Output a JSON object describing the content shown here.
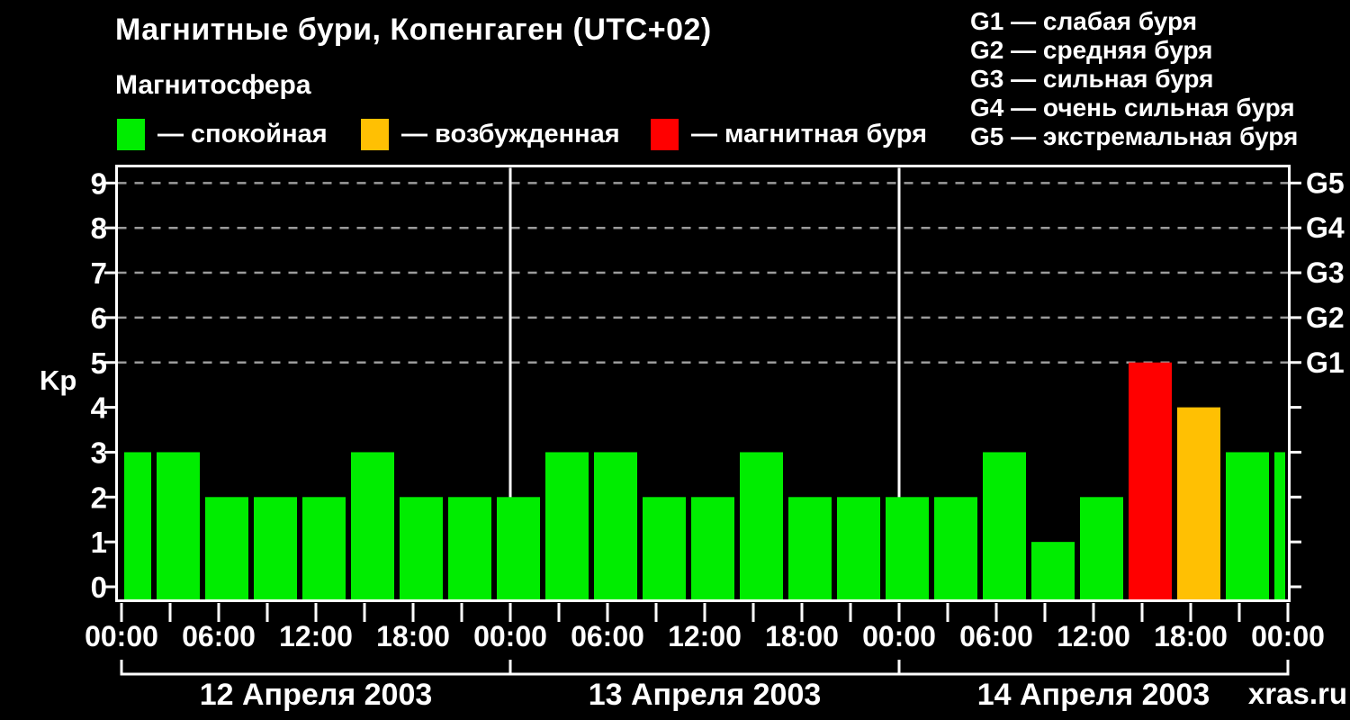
{
  "header": {
    "title": "Магнитные бури, Копенгаген (UTC+02)",
    "subtitle": "Магнитосфера"
  },
  "legend": {
    "items": [
      {
        "key": "quiet",
        "label": "— спокойная",
        "color": "#00ed00"
      },
      {
        "key": "excited",
        "label": "— возбужденная",
        "color": "#ffc003"
      },
      {
        "key": "storm",
        "label": "— магнитная буря",
        "color": "#ff0000"
      }
    ]
  },
  "g_legend": {
    "lines": [
      "G1 — слабая буря",
      "G2 — средняя буря",
      "G3 — сильная буря",
      "G4 — очень сильная буря",
      "G5 — экстремальная буря"
    ]
  },
  "watermark": "xras.ru",
  "chart_data": {
    "type": "bar",
    "title": "Магнитные бури, Копенгаген (UTC+02)",
    "ylabel": "Kp",
    "ylim": [
      0,
      9.4
    ],
    "yticks": [
      0,
      1,
      2,
      3,
      4,
      5,
      6,
      7,
      8,
      9
    ],
    "right_axis": [
      {
        "kp": 5,
        "label": "G1"
      },
      {
        "kp": 6,
        "label": "G2"
      },
      {
        "kp": 7,
        "label": "G3"
      },
      {
        "kp": 8,
        "label": "G4"
      },
      {
        "kp": 9,
        "label": "G5"
      }
    ],
    "dashed_grid_kp": [
      5,
      6,
      7,
      8,
      9
    ],
    "hours_span": 72,
    "minor_tick_hours": 3,
    "day_boundary_hours": [
      24,
      48
    ],
    "time_ticks": [
      {
        "hour": 0,
        "label": "00:00"
      },
      {
        "hour": 6,
        "label": "06:00"
      },
      {
        "hour": 12,
        "label": "12:00"
      },
      {
        "hour": 18,
        "label": "18:00"
      },
      {
        "hour": 24,
        "label": "00:00"
      },
      {
        "hour": 30,
        "label": "06:00"
      },
      {
        "hour": 36,
        "label": "12:00"
      },
      {
        "hour": 42,
        "label": "18:00"
      },
      {
        "hour": 48,
        "label": "00:00"
      },
      {
        "hour": 54,
        "label": "06:00"
      },
      {
        "hour": 60,
        "label": "12:00"
      },
      {
        "hour": 66,
        "label": "18:00"
      },
      {
        "hour": 72,
        "label": "00:00"
      }
    ],
    "days": [
      {
        "label": "12 Апреля 2003",
        "start_hour": 0,
        "end_hour": 24
      },
      {
        "label": "13 Апреля 2003",
        "start_hour": 24,
        "end_hour": 48
      },
      {
        "label": "14 Апреля 2003",
        "start_hour": 48,
        "end_hour": 72
      }
    ],
    "bars": [
      {
        "start_hour": 0,
        "end_hour": 2,
        "kp": 3,
        "state": "quiet"
      },
      {
        "start_hour": 2,
        "end_hour": 5,
        "kp": 3,
        "state": "quiet"
      },
      {
        "start_hour": 5,
        "end_hour": 8,
        "kp": 2,
        "state": "quiet"
      },
      {
        "start_hour": 8,
        "end_hour": 11,
        "kp": 2,
        "state": "quiet"
      },
      {
        "start_hour": 11,
        "end_hour": 14,
        "kp": 2,
        "state": "quiet"
      },
      {
        "start_hour": 14,
        "end_hour": 17,
        "kp": 3,
        "state": "quiet"
      },
      {
        "start_hour": 17,
        "end_hour": 20,
        "kp": 2,
        "state": "quiet"
      },
      {
        "start_hour": 20,
        "end_hour": 23,
        "kp": 2,
        "state": "quiet"
      },
      {
        "start_hour": 23,
        "end_hour": 26,
        "kp": 2,
        "state": "quiet"
      },
      {
        "start_hour": 26,
        "end_hour": 29,
        "kp": 3,
        "state": "quiet"
      },
      {
        "start_hour": 29,
        "end_hour": 32,
        "kp": 3,
        "state": "quiet"
      },
      {
        "start_hour": 32,
        "end_hour": 35,
        "kp": 2,
        "state": "quiet"
      },
      {
        "start_hour": 35,
        "end_hour": 38,
        "kp": 2,
        "state": "quiet"
      },
      {
        "start_hour": 38,
        "end_hour": 41,
        "kp": 3,
        "state": "quiet"
      },
      {
        "start_hour": 41,
        "end_hour": 44,
        "kp": 2,
        "state": "quiet"
      },
      {
        "start_hour": 44,
        "end_hour": 47,
        "kp": 2,
        "state": "quiet"
      },
      {
        "start_hour": 47,
        "end_hour": 50,
        "kp": 2,
        "state": "quiet"
      },
      {
        "start_hour": 50,
        "end_hour": 53,
        "kp": 2,
        "state": "quiet"
      },
      {
        "start_hour": 53,
        "end_hour": 56,
        "kp": 3,
        "state": "quiet"
      },
      {
        "start_hour": 56,
        "end_hour": 59,
        "kp": 1,
        "state": "quiet"
      },
      {
        "start_hour": 59,
        "end_hour": 62,
        "kp": 2,
        "state": "quiet"
      },
      {
        "start_hour": 62,
        "end_hour": 65,
        "kp": 5,
        "state": "storm"
      },
      {
        "start_hour": 65,
        "end_hour": 68,
        "kp": 4,
        "state": "excited"
      },
      {
        "start_hour": 68,
        "end_hour": 71,
        "kp": 3,
        "state": "quiet"
      },
      {
        "start_hour": 71,
        "end_hour": 72,
        "kp": 3,
        "state": "quiet"
      }
    ],
    "legend_position": "top-left and top-right",
    "grid": "dashed horizontal lines at Kp 5..9 only"
  }
}
